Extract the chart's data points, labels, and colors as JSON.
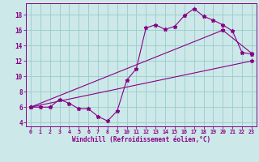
{
  "xlabel": "Windchill (Refroidissement éolien,°C)",
  "bg_color": "#cce8e8",
  "grid_color": "#99cccc",
  "line_color": "#880088",
  "xlim": [
    -0.5,
    23.5
  ],
  "ylim": [
    3.5,
    19.5
  ],
  "yticks": [
    4,
    6,
    8,
    10,
    12,
    14,
    16,
    18
  ],
  "xticks": [
    0,
    1,
    2,
    3,
    4,
    5,
    6,
    7,
    8,
    9,
    10,
    11,
    12,
    13,
    14,
    15,
    16,
    17,
    18,
    19,
    20,
    21,
    22,
    23
  ],
  "line1_x": [
    0,
    1,
    2,
    3,
    4,
    5,
    6,
    7,
    8,
    9,
    10,
    11,
    12,
    13,
    14,
    15,
    16,
    17,
    18,
    19,
    20,
    21,
    22,
    23
  ],
  "line1_y": [
    6,
    6,
    6,
    7,
    6.5,
    5.8,
    5.8,
    4.8,
    4.2,
    5.5,
    9.5,
    11,
    16.3,
    16.7,
    16.1,
    16.5,
    17.9,
    18.8,
    17.8,
    17.3,
    16.7,
    15.9,
    13.1,
    12.9
  ],
  "line2_x": [
    0,
    23
  ],
  "line2_y": [
    6,
    12
  ],
  "line3_x": [
    0,
    20,
    23
  ],
  "line3_y": [
    6,
    16,
    13
  ]
}
